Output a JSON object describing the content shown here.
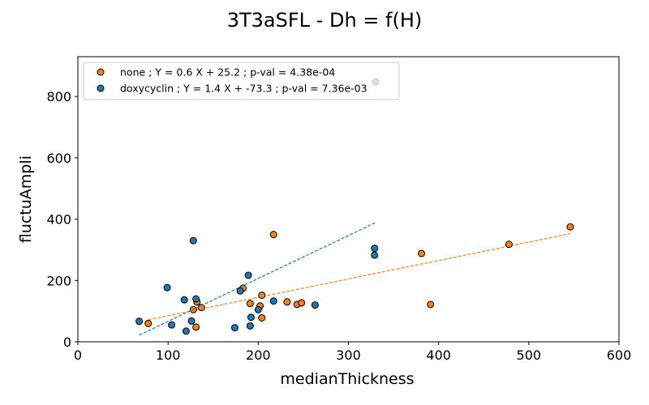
{
  "chart_data": {
    "type": "scatter",
    "title": "3T3aSFL - Dh = f(H)",
    "xlabel": "medianThickness",
    "ylabel": "fluctuAmpli",
    "xlim": [
      0,
      600
    ],
    "ylim": [
      0,
      930
    ],
    "xticks": [
      0,
      100,
      200,
      300,
      400,
      500,
      600
    ],
    "yticks": [
      0,
      200,
      400,
      600,
      800
    ],
    "grid": false,
    "legend_position": "top-left",
    "series": [
      {
        "name": "none ; Y = 0.6 X + 25.2 ; p-val = 4.38e-04",
        "color": "#ff7f0e",
        "fit": {
          "slope": 0.6,
          "intercept": 25.2,
          "x_range": [
            78,
            546
          ]
        },
        "points": [
          {
            "x": 78,
            "y": 60
          },
          {
            "x": 128,
            "y": 105
          },
          {
            "x": 131,
            "y": 48
          },
          {
            "x": 132,
            "y": 130
          },
          {
            "x": 137,
            "y": 112
          },
          {
            "x": 183,
            "y": 175
          },
          {
            "x": 191,
            "y": 125
          },
          {
            "x": 202,
            "y": 117
          },
          {
            "x": 204,
            "y": 152
          },
          {
            "x": 204,
            "y": 78
          },
          {
            "x": 217,
            "y": 350
          },
          {
            "x": 232,
            "y": 130
          },
          {
            "x": 243,
            "y": 122
          },
          {
            "x": 248,
            "y": 127
          },
          {
            "x": 381,
            "y": 288
          },
          {
            "x": 391,
            "y": 122
          },
          {
            "x": 478,
            "y": 318
          },
          {
            "x": 546,
            "y": 375
          }
        ]
      },
      {
        "name": "doxycyclin ; Y = 1.4 X + -73.3 ; p-val = 7.36e-03",
        "color": "#1f77b4",
        "fit": {
          "slope": 1.4,
          "intercept": -73.3,
          "x_range": [
            68,
            330
          ]
        },
        "points": [
          {
            "x": 68,
            "y": 67
          },
          {
            "x": 99,
            "y": 177
          },
          {
            "x": 104,
            "y": 55
          },
          {
            "x": 118,
            "y": 137
          },
          {
            "x": 120,
            "y": 35
          },
          {
            "x": 126,
            "y": 68
          },
          {
            "x": 128,
            "y": 330
          },
          {
            "x": 131,
            "y": 140
          },
          {
            "x": 174,
            "y": 46
          },
          {
            "x": 180,
            "y": 166
          },
          {
            "x": 189,
            "y": 217
          },
          {
            "x": 191,
            "y": 52
          },
          {
            "x": 192,
            "y": 80
          },
          {
            "x": 200,
            "y": 105
          },
          {
            "x": 217,
            "y": 133
          },
          {
            "x": 263,
            "y": 120
          },
          {
            "x": 329,
            "y": 305
          },
          {
            "x": 329,
            "y": 283
          },
          {
            "x": 330,
            "y": 848
          }
        ]
      }
    ]
  }
}
